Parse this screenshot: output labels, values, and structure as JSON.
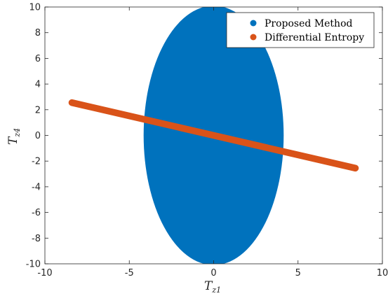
{
  "chart_data": {
    "type": "scatter",
    "xlabel": "T",
    "xlabel_sub": "z1",
    "ylabel": "T",
    "ylabel_sub": "z4",
    "xlim": [
      -10,
      10
    ],
    "ylim": [
      -10,
      10
    ],
    "xticks": [
      -10,
      -5,
      0,
      5,
      10
    ],
    "xtick_labels": [
      "-10",
      "-5",
      "0",
      "5",
      "10"
    ],
    "yticks": [
      -10,
      -8,
      -6,
      -4,
      -2,
      0,
      2,
      4,
      6,
      8,
      10
    ],
    "ytick_labels": [
      "-10",
      "-8",
      "-6",
      "-4",
      "-2",
      "0",
      "2",
      "4",
      "6",
      "8",
      "10"
    ],
    "grid": false,
    "legend_position": "top-right",
    "series": [
      {
        "name": "Proposed Method",
        "color": "#0072BD",
        "region": "filled ellipse",
        "center": [
          0,
          0
        ],
        "semi_axis_x": 4.15,
        "semi_axis_y": 10.1
      },
      {
        "name": "Differential Entropy",
        "color": "#D95319",
        "region": "thin band",
        "start": [
          -8.4,
          2.55
        ],
        "end": [
          8.4,
          -2.55
        ],
        "band_half_width": 0.26
      }
    ]
  }
}
